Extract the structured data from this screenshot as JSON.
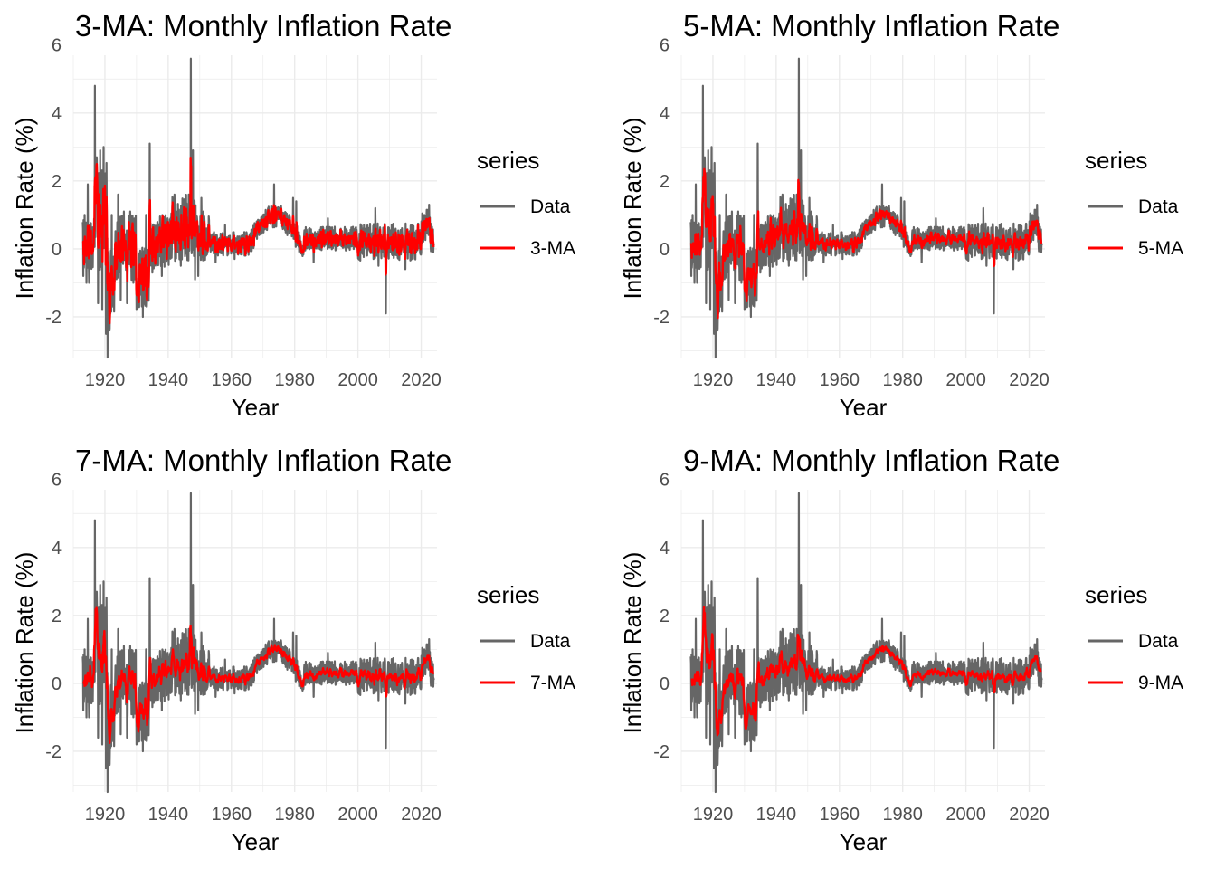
{
  "chart_data": [
    {
      "type": "line",
      "title": "3-MA: Monthly Inflation Rate",
      "xlabel": "Year",
      "ylabel": "Inflation Rate (%)",
      "xlim": [
        1910,
        2025
      ],
      "ylim": [
        -3.2,
        5.7
      ],
      "xticks": [
        "1920",
        "1940",
        "1960",
        "1980",
        "2000",
        "2020"
      ],
      "yticks": [
        "-2",
        "0",
        "2",
        "4",
        "6"
      ],
      "grid": true,
      "legend": {
        "title": "series",
        "position": "right"
      },
      "ma_window": 3,
      "series": [
        {
          "name": "Data",
          "color": "#666666"
        },
        {
          "name": "3-MA",
          "color": "#ff0000"
        }
      ]
    },
    {
      "type": "line",
      "title": "5-MA: Monthly Inflation Rate",
      "xlabel": "Year",
      "ylabel": "Inflation Rate (%)",
      "xlim": [
        1910,
        2025
      ],
      "ylim": [
        -3.2,
        5.7
      ],
      "xticks": [
        "1920",
        "1940",
        "1960",
        "1980",
        "2000",
        "2020"
      ],
      "yticks": [
        "-2",
        "0",
        "2",
        "4",
        "6"
      ],
      "grid": true,
      "legend": {
        "title": "series",
        "position": "right"
      },
      "ma_window": 5,
      "series": [
        {
          "name": "Data",
          "color": "#666666"
        },
        {
          "name": "5-MA",
          "color": "#ff0000"
        }
      ]
    },
    {
      "type": "line",
      "title": "7-MA: Monthly Inflation Rate",
      "xlabel": "Year",
      "ylabel": "Inflation Rate (%)",
      "xlim": [
        1910,
        2025
      ],
      "ylim": [
        -3.2,
        5.7
      ],
      "xticks": [
        "1920",
        "1940",
        "1960",
        "1980",
        "2000",
        "2020"
      ],
      "yticks": [
        "-2",
        "0",
        "2",
        "4",
        "6"
      ],
      "grid": true,
      "legend": {
        "title": "series",
        "position": "right"
      },
      "ma_window": 7,
      "series": [
        {
          "name": "Data",
          "color": "#666666"
        },
        {
          "name": "7-MA",
          "color": "#ff0000"
        }
      ]
    },
    {
      "type": "line",
      "title": "9-MA: Monthly Inflation Rate",
      "xlabel": "Year",
      "ylabel": "Inflation Rate (%)",
      "xlim": [
        1910,
        2025
      ],
      "ylim": [
        -3.2,
        5.7
      ],
      "xticks": [
        "1920",
        "1940",
        "1960",
        "1980",
        "2000",
        "2020"
      ],
      "yticks": [
        "-2",
        "0",
        "2",
        "4",
        "6"
      ],
      "grid": true,
      "legend": {
        "title": "series",
        "position": "right"
      },
      "ma_window": 9,
      "series": [
        {
          "name": "Data",
          "color": "#666666"
        },
        {
          "name": "9-MA",
          "color": "#ff0000"
        }
      ]
    }
  ],
  "data_series": {
    "start_year": 1913,
    "end_year": 2024,
    "spikes": [
      {
        "year": 1913.2,
        "value": -0.8
      },
      {
        "year": 1913.6,
        "value": 1.0
      },
      {
        "year": 1914.2,
        "value": -1.0
      },
      {
        "year": 1914.6,
        "value": 1.9
      },
      {
        "year": 1915.0,
        "value": -1.0
      },
      {
        "year": 1916.8,
        "value": 4.8
      },
      {
        "year": 1917.3,
        "value": 2.6
      },
      {
        "year": 1917.8,
        "value": -1.6
      },
      {
        "year": 1918.5,
        "value": 2.9
      },
      {
        "year": 1919.2,
        "value": -1.8
      },
      {
        "year": 1919.6,
        "value": 3.0
      },
      {
        "year": 1920.3,
        "value": -2.5
      },
      {
        "year": 1920.8,
        "value": -3.2
      },
      {
        "year": 1921.5,
        "value": -2.4
      },
      {
        "year": 1922.2,
        "value": 1.0
      },
      {
        "year": 1923.0,
        "value": -0.8
      },
      {
        "year": 1924.2,
        "value": 1.6
      },
      {
        "year": 1925.0,
        "value": -1.5
      },
      {
        "year": 1926.0,
        "value": 1.1
      },
      {
        "year": 1927.0,
        "value": -1.6
      },
      {
        "year": 1928.0,
        "value": 1.1
      },
      {
        "year": 1929.0,
        "value": -1.0
      },
      {
        "year": 1930.0,
        "value": -1.8
      },
      {
        "year": 1931.0,
        "value": -1.2
      },
      {
        "year": 1932.0,
        "value": -2.0
      },
      {
        "year": 1933.0,
        "value": 1.0
      },
      {
        "year": 1934.2,
        "value": 3.1
      },
      {
        "year": 1935.0,
        "value": -0.7
      },
      {
        "year": 1937.0,
        "value": 0.7
      },
      {
        "year": 1938.0,
        "value": -0.8
      },
      {
        "year": 1940.0,
        "value": 0.7
      },
      {
        "year": 1942.0,
        "value": 1.6
      },
      {
        "year": 1944.0,
        "value": -0.5
      },
      {
        "year": 1946.5,
        "value": 1.6
      },
      {
        "year": 1947.2,
        "value": 5.6
      },
      {
        "year": 1947.8,
        "value": 2.9
      },
      {
        "year": 1948.5,
        "value": -0.9
      },
      {
        "year": 1949.5,
        "value": -0.8
      },
      {
        "year": 1950.5,
        "value": 1.5
      },
      {
        "year": 1951.2,
        "value": 1.1
      },
      {
        "year": 1952.0,
        "value": -0.2
      },
      {
        "year": 1955.0,
        "value": -0.4
      },
      {
        "year": 1958.0,
        "value": 0.7
      },
      {
        "year": 1961.0,
        "value": -0.3
      },
      {
        "year": 1970.0,
        "value": 1.0
      },
      {
        "year": 1973.5,
        "value": 1.9
      },
      {
        "year": 1974.5,
        "value": 1.2
      },
      {
        "year": 1979.5,
        "value": 1.5
      },
      {
        "year": 1980.5,
        "value": 1.4
      },
      {
        "year": 1986.0,
        "value": -0.4
      },
      {
        "year": 1990.5,
        "value": 0.9
      },
      {
        "year": 2005.5,
        "value": 1.2
      },
      {
        "year": 2006.5,
        "value": -0.5
      },
      {
        "year": 2008.8,
        "value": -1.9
      },
      {
        "year": 2015.0,
        "value": -0.6
      },
      {
        "year": 2021.0,
        "value": 1.0
      },
      {
        "year": 2022.5,
        "value": 1.3
      }
    ]
  }
}
